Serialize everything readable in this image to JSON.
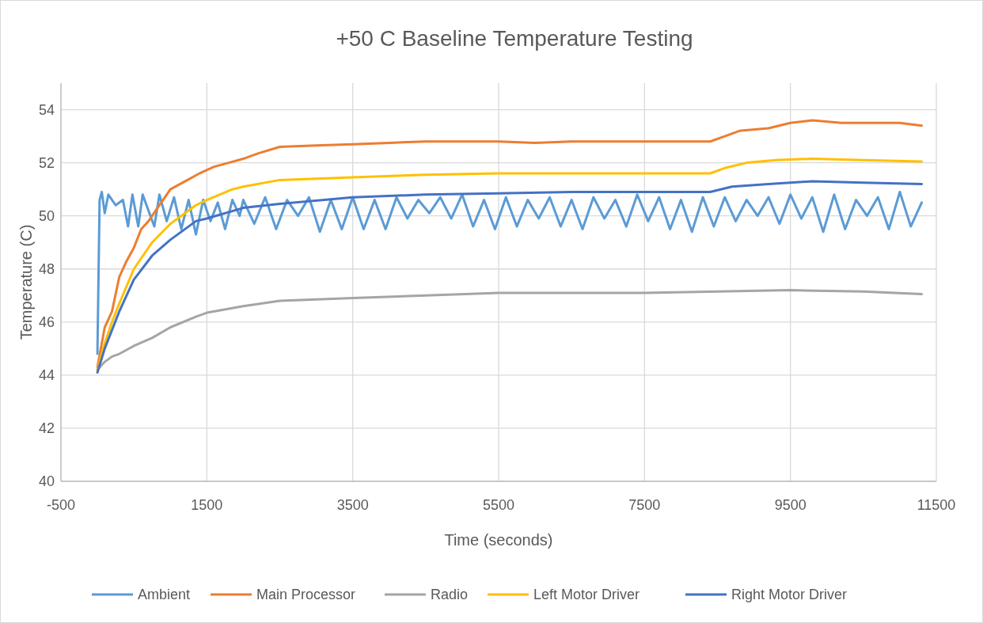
{
  "chart_data": {
    "type": "line",
    "title": "+50 C Baseline Temperature Testing",
    "xlabel": "Time (seconds)",
    "ylabel": "Temperature (C)",
    "xlim": [
      -500,
      11500
    ],
    "xticks": [
      -500,
      1500,
      3500,
      5500,
      7500,
      9500,
      11500
    ],
    "ylim": [
      40,
      55
    ],
    "yticks": [
      40,
      42,
      44,
      46,
      48,
      50,
      52,
      54
    ],
    "grid": true,
    "legend": "bottom",
    "marker": "none",
    "line_style": "solid",
    "series": [
      {
        "name": "Ambient",
        "color": "#5b9bd5",
        "x": [
          0,
          30,
          60,
          100,
          150,
          250,
          350,
          420,
          480,
          560,
          620,
          700,
          780,
          850,
          950,
          1050,
          1150,
          1250,
          1350,
          1450,
          1550,
          1650,
          1750,
          1850,
          1950,
          2000,
          2150,
          2300,
          2450,
          2600,
          2750,
          2900,
          3050,
          3200,
          3350,
          3500,
          3650,
          3800,
          3950,
          4100,
          4250,
          4400,
          4550,
          4700,
          4850,
          5000,
          5150,
          5300,
          5450,
          5600,
          5750,
          5900,
          6050,
          6200,
          6350,
          6500,
          6650,
          6800,
          6950,
          7100,
          7250,
          7400,
          7550,
          7700,
          7850,
          8000,
          8150,
          8300,
          8450,
          8600,
          8750,
          8900,
          9050,
          9200,
          9350,
          9500,
          9650,
          9800,
          9950,
          10100,
          10250,
          10400,
          10550,
          10700,
          10850,
          11000,
          11150,
          11300
        ],
        "values": [
          44.8,
          50.6,
          50.9,
          50.1,
          50.8,
          50.4,
          50.6,
          49.6,
          50.8,
          49.6,
          50.8,
          50.2,
          49.6,
          50.8,
          49.8,
          50.7,
          49.5,
          50.6,
          49.3,
          50.6,
          49.8,
          50.5,
          49.5,
          50.6,
          50.0,
          50.6,
          49.7,
          50.7,
          49.5,
          50.6,
          50.0,
          50.7,
          49.4,
          50.6,
          49.5,
          50.7,
          49.5,
          50.6,
          49.5,
          50.7,
          49.9,
          50.6,
          50.1,
          50.7,
          49.9,
          50.8,
          49.6,
          50.6,
          49.5,
          50.7,
          49.6,
          50.6,
          49.9,
          50.7,
          49.6,
          50.6,
          49.5,
          50.7,
          49.9,
          50.6,
          49.6,
          50.8,
          49.8,
          50.7,
          49.5,
          50.6,
          49.4,
          50.7,
          49.6,
          50.7,
          49.8,
          50.6,
          50.0,
          50.7,
          49.7,
          50.8,
          49.9,
          50.7,
          49.4,
          50.8,
          49.5,
          50.6,
          50.0,
          50.7,
          49.5,
          50.9,
          49.6,
          50.5
        ]
      },
      {
        "name": "Main Processor",
        "color": "#ed7d31",
        "x": [
          0,
          100,
          200,
          300,
          400,
          500,
          600,
          700,
          800,
          900,
          1000,
          1200,
          1400,
          1600,
          1800,
          2000,
          2200,
          2500,
          3000,
          3500,
          4000,
          4500,
          5000,
          5500,
          6000,
          6500,
          7000,
          7500,
          8000,
          8400,
          8600,
          8800,
          9200,
          9500,
          9800,
          10200,
          10600,
          11000,
          11300
        ],
        "values": [
          44.3,
          45.8,
          46.4,
          47.7,
          48.3,
          48.8,
          49.5,
          49.8,
          50.2,
          50.6,
          51.0,
          51.3,
          51.6,
          51.85,
          52.0,
          52.15,
          52.35,
          52.6,
          52.65,
          52.7,
          52.75,
          52.8,
          52.8,
          52.8,
          52.75,
          52.8,
          52.8,
          52.8,
          52.8,
          52.8,
          53.0,
          53.2,
          53.3,
          53.5,
          53.6,
          53.5,
          53.5,
          53.5,
          53.4
        ]
      },
      {
        "name": "Radio",
        "color": "#a5a5a5",
        "x": [
          0,
          100,
          200,
          300,
          500,
          750,
          1000,
          1350,
          1500,
          2000,
          2500,
          3500,
          4500,
          5500,
          6500,
          7500,
          8500,
          9500,
          10500,
          11300
        ],
        "values": [
          44.2,
          44.5,
          44.7,
          44.8,
          45.1,
          45.4,
          45.8,
          46.2,
          46.35,
          46.6,
          46.8,
          46.9,
          47.0,
          47.1,
          47.1,
          47.1,
          47.15,
          47.2,
          47.15,
          47.05
        ]
      },
      {
        "name": "Left Motor Driver",
        "color": "#ffc000",
        "x": [
          0,
          100,
          200,
          300,
          500,
          750,
          1000,
          1350,
          1500,
          1850,
          2000,
          2500,
          3500,
          4500,
          5500,
          6500,
          7500,
          8400,
          8600,
          8900,
          9300,
          9800,
          10500,
          11300
        ],
        "values": [
          44.2,
          45.2,
          46.0,
          46.7,
          48.0,
          49.0,
          49.7,
          50.4,
          50.6,
          51.0,
          51.1,
          51.35,
          51.45,
          51.55,
          51.6,
          51.6,
          51.6,
          51.6,
          51.8,
          52.0,
          52.1,
          52.15,
          52.1,
          52.05
        ]
      },
      {
        "name": "Right Motor Driver",
        "color": "#4472c4",
        "x": [
          0,
          100,
          200,
          300,
          500,
          750,
          1000,
          1350,
          1500,
          2000,
          2500,
          3500,
          4500,
          5500,
          6500,
          7500,
          8400,
          8700,
          9200,
          9800,
          10500,
          11300
        ],
        "values": [
          44.1,
          45.0,
          45.7,
          46.4,
          47.6,
          48.5,
          49.1,
          49.8,
          49.9,
          50.3,
          50.45,
          50.7,
          50.8,
          50.85,
          50.9,
          50.9,
          50.9,
          51.1,
          51.2,
          51.3,
          51.25,
          51.2
        ]
      }
    ]
  }
}
